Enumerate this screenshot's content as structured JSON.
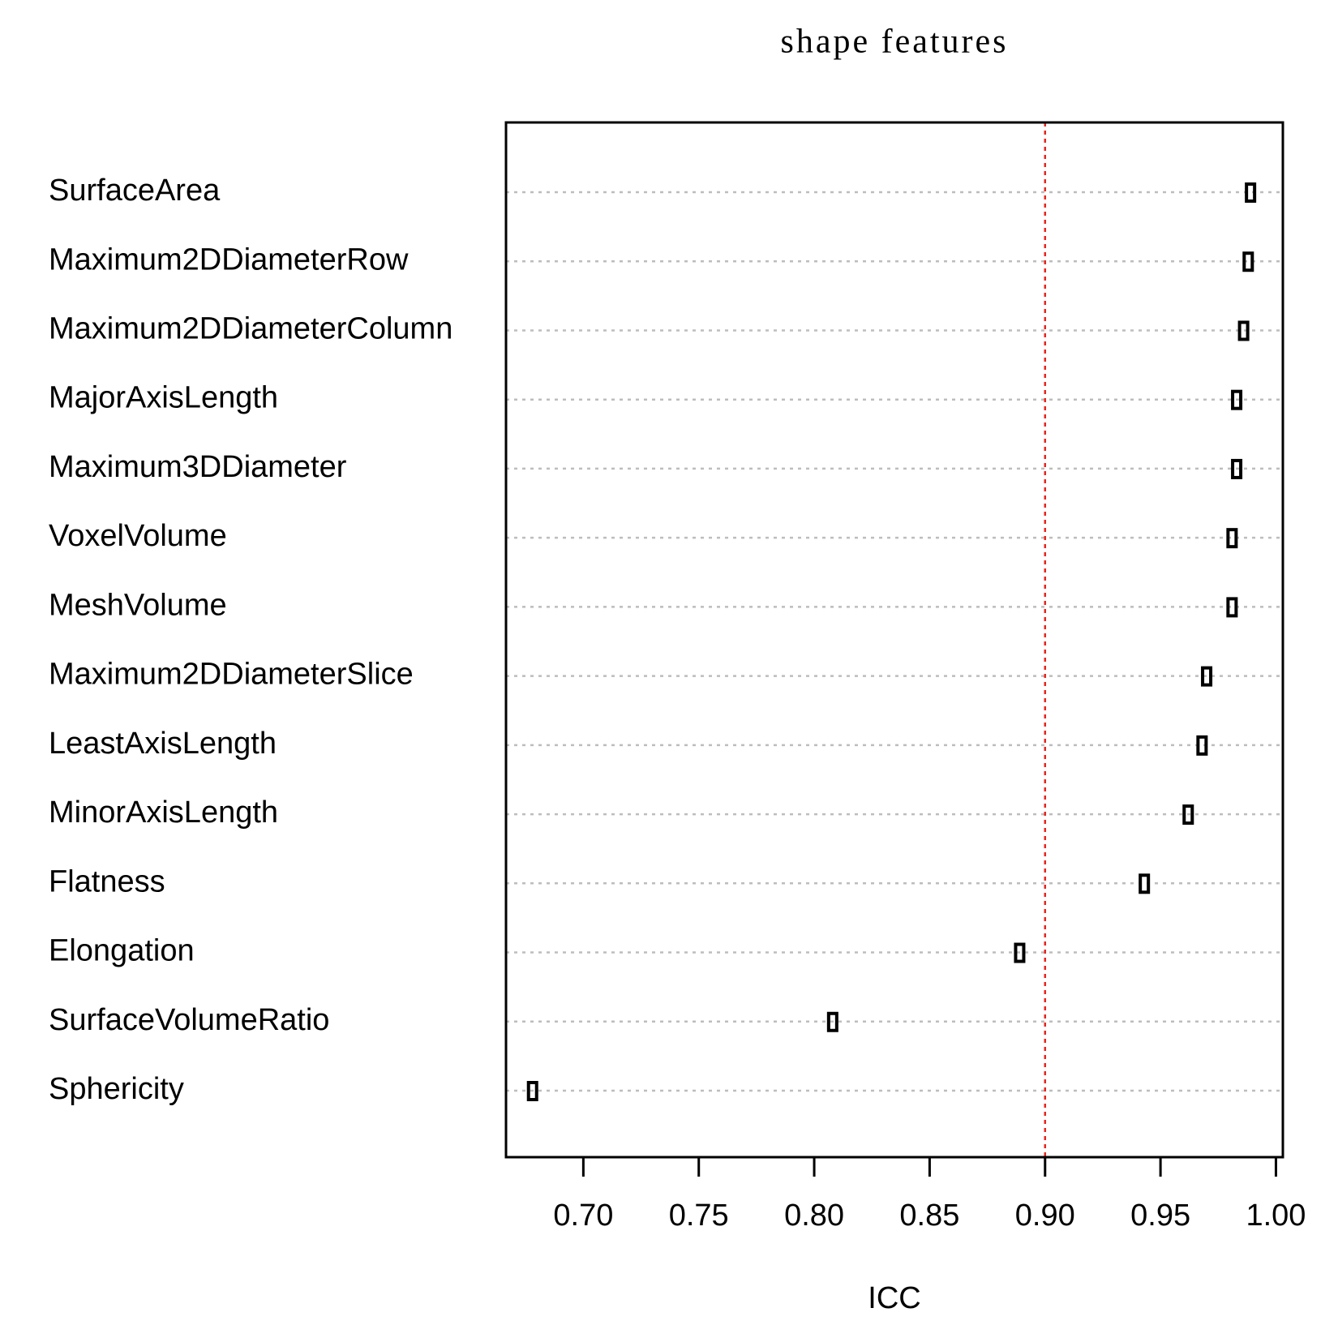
{
  "chart_data": {
    "type": "dotchart",
    "title": "shape features",
    "x_label": "ICC",
    "categories": [
      "SurfaceArea",
      "Maximum2DDiameterRow",
      "Maximum2DDiameterColumn",
      "MajorAxisLength",
      "Maximum3DDiameter",
      "VoxelVolume",
      "MeshVolume",
      "Maximum2DDiameterSlice",
      "LeastAxisLength",
      "MinorAxisLength",
      "Flatness",
      "Elongation",
      "SurfaceVolumeRatio",
      "Sphericity"
    ],
    "values": [
      0.989,
      0.988,
      0.986,
      0.983,
      0.983,
      0.981,
      0.981,
      0.97,
      0.968,
      0.962,
      0.943,
      0.889,
      0.808,
      0.678
    ],
    "color": "#000000",
    "xlim": [
      0.6665,
      1.003
    ],
    "xticks": [
      {
        "value": 0.7,
        "label": "0.70"
      },
      {
        "value": 0.75,
        "label": "0.75"
      },
      {
        "value": 0.8,
        "label": "0.80"
      },
      {
        "value": 0.85,
        "label": "0.85"
      },
      {
        "value": 0.9,
        "label": "0.90"
      },
      {
        "value": 0.95,
        "label": "0.95"
      },
      {
        "value": 1.0,
        "label": "1.00"
      }
    ],
    "reference_line": {
      "value": 0.9,
      "color": "#e8251c"
    },
    "grid": true
  }
}
